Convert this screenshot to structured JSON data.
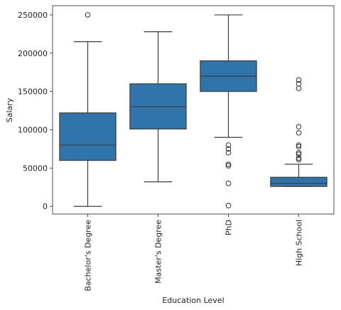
{
  "chart_data": {
    "type": "box",
    "title": "",
    "xlabel": "Education Level",
    "ylabel": "Salary",
    "ylim": [
      -10000,
      262000
    ],
    "yticks": [
      0,
      50000,
      100000,
      150000,
      200000,
      250000
    ],
    "ytick_labels": [
      "0",
      "50000",
      "100000",
      "150000",
      "200000",
      "250000"
    ],
    "grid": false,
    "legend": "none",
    "box_color": "#2f74ab",
    "line_color": "#3d3d3d",
    "categories": [
      "Bachelor's Degree",
      "Master's Degree",
      "PhD",
      "High School"
    ],
    "boxes": [
      {
        "category": "Bachelor's Degree",
        "whisker_low": 0,
        "q1": 60000,
        "median": 80000,
        "q3": 122000,
        "whisker_high": 215000,
        "outliers": [
          250000
        ]
      },
      {
        "category": "Master's Degree",
        "whisker_low": 32000,
        "q1": 101000,
        "median": 130000,
        "q3": 160000,
        "whisker_high": 228000,
        "outliers": []
      },
      {
        "category": "PhD",
        "whisker_low": 90000,
        "q1": 150000,
        "median": 170000,
        "q3": 190000,
        "whisker_high": 250000,
        "outliers": [
          80000,
          75000,
          70000,
          55000,
          53000,
          30000,
          1000
        ]
      },
      {
        "category": "High School",
        "whisker_low": 26000,
        "q1": 26000,
        "median": 30000,
        "q3": 38000,
        "whisker_high": 55000,
        "outliers": [
          165000,
          160000,
          154000,
          104000,
          96000,
          80000,
          78000,
          70000,
          68000,
          63000,
          61000
        ]
      }
    ]
  }
}
